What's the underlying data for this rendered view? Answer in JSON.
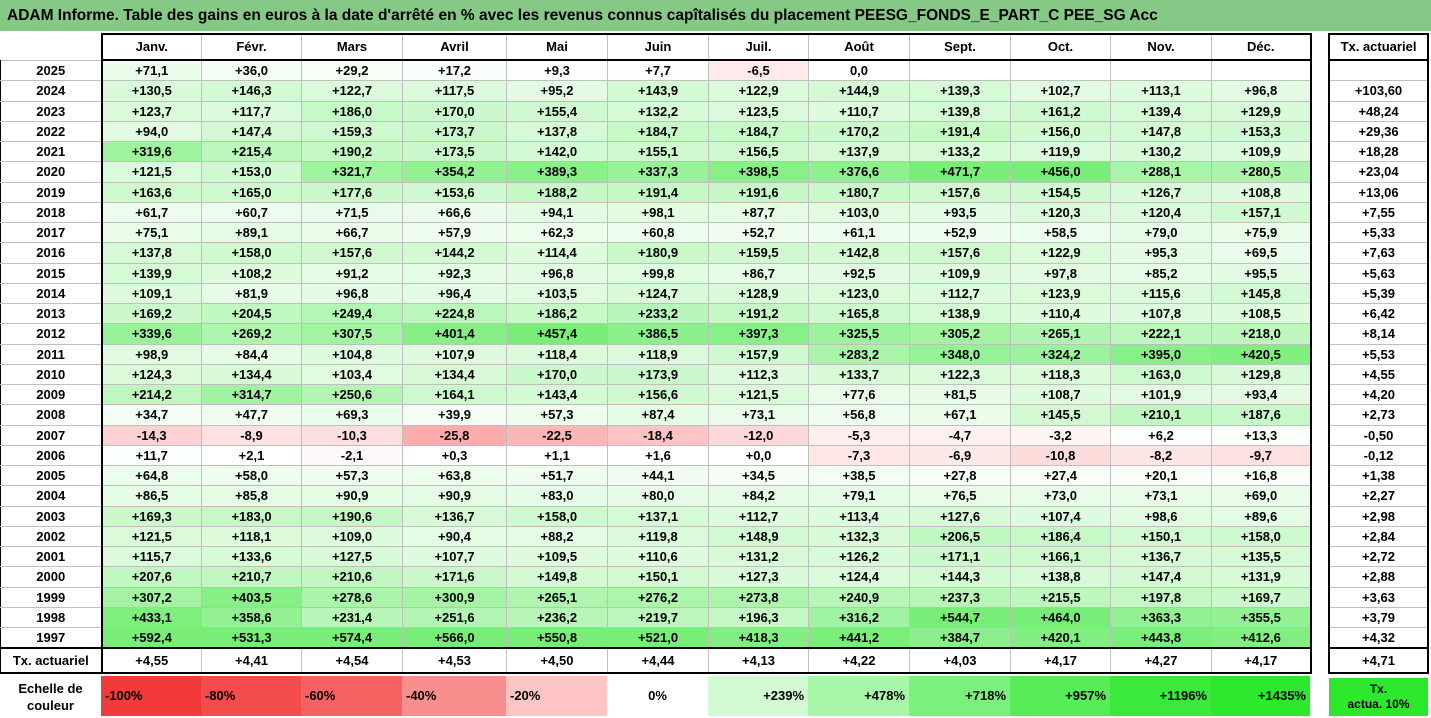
{
  "title": "ADAM Informe. Table des gains en euros à la date d'arrêté en % avec les revenus connus capîtalisés du placement PEESG_FONDS_E_PART_C PEE_SG Acc",
  "months": [
    "Janv.",
    "Févr.",
    "Mars",
    "Avril",
    "Mai",
    "Juin",
    "Juil.",
    "Août",
    "Sept.",
    "Oct.",
    "Nov.",
    "Déc."
  ],
  "side_header": "Tx. actuariel",
  "rows": [
    {
      "year": "2025",
      "values": [
        "+71,1",
        "+36,0",
        "+29,2",
        "+17,2",
        "+9,3",
        "+7,7",
        "-6,5",
        "0,0",
        "",
        "",
        "",
        ""
      ],
      "tx": ""
    },
    {
      "year": "2024",
      "values": [
        "+130,5",
        "+146,3",
        "+122,7",
        "+117,5",
        "+95,2",
        "+143,9",
        "+122,9",
        "+144,9",
        "+139,3",
        "+102,7",
        "+113,1",
        "+96,8"
      ],
      "tx": "+103,60"
    },
    {
      "year": "2023",
      "values": [
        "+123,7",
        "+117,7",
        "+186,0",
        "+170,0",
        "+155,4",
        "+132,2",
        "+123,5",
        "+110,7",
        "+139,8",
        "+161,2",
        "+139,4",
        "+129,9"
      ],
      "tx": "+48,24"
    },
    {
      "year": "2022",
      "values": [
        "+94,0",
        "+147,4",
        "+159,3",
        "+173,7",
        "+137,8",
        "+184,7",
        "+184,7",
        "+170,2",
        "+191,4",
        "+156,0",
        "+147,8",
        "+153,3"
      ],
      "tx": "+29,36"
    },
    {
      "year": "2021",
      "values": [
        "+319,6",
        "+215,4",
        "+190,2",
        "+173,5",
        "+142,0",
        "+155,1",
        "+156,5",
        "+137,9",
        "+133,2",
        "+119,9",
        "+130,2",
        "+109,9"
      ],
      "tx": "+18,28"
    },
    {
      "year": "2020",
      "values": [
        "+121,5",
        "+153,0",
        "+321,7",
        "+354,2",
        "+389,3",
        "+337,3",
        "+398,5",
        "+376,6",
        "+471,7",
        "+456,0",
        "+288,1",
        "+280,5"
      ],
      "tx": "+23,04"
    },
    {
      "year": "2019",
      "values": [
        "+163,6",
        "+165,0",
        "+177,6",
        "+153,6",
        "+188,2",
        "+191,4",
        "+191,6",
        "+180,7",
        "+157,6",
        "+154,5",
        "+126,7",
        "+108,8"
      ],
      "tx": "+13,06"
    },
    {
      "year": "2018",
      "values": [
        "+61,7",
        "+60,7",
        "+71,5",
        "+66,6",
        "+94,1",
        "+98,1",
        "+87,7",
        "+103,0",
        "+93,5",
        "+120,3",
        "+120,4",
        "+157,1"
      ],
      "tx": "+7,55"
    },
    {
      "year": "2017",
      "values": [
        "+75,1",
        "+89,1",
        "+66,7",
        "+57,9",
        "+62,3",
        "+60,8",
        "+52,7",
        "+61,1",
        "+52,9",
        "+58,5",
        "+79,0",
        "+75,9"
      ],
      "tx": "+5,33"
    },
    {
      "year": "2016",
      "values": [
        "+137,8",
        "+158,0",
        "+157,6",
        "+144,2",
        "+114,4",
        "+180,9",
        "+159,5",
        "+142,8",
        "+157,6",
        "+122,9",
        "+95,3",
        "+69,5"
      ],
      "tx": "+7,63"
    },
    {
      "year": "2015",
      "values": [
        "+139,9",
        "+108,2",
        "+91,2",
        "+92,3",
        "+96,8",
        "+99,8",
        "+86,7",
        "+92,5",
        "+109,9",
        "+97,8",
        "+85,2",
        "+95,5"
      ],
      "tx": "+5,63"
    },
    {
      "year": "2014",
      "values": [
        "+109,1",
        "+81,9",
        "+96,8",
        "+96,4",
        "+103,5",
        "+124,7",
        "+128,9",
        "+123,0",
        "+112,7",
        "+123,9",
        "+115,6",
        "+145,8"
      ],
      "tx": "+5,39"
    },
    {
      "year": "2013",
      "values": [
        "+169,2",
        "+204,5",
        "+249,4",
        "+224,8",
        "+186,2",
        "+233,2",
        "+191,2",
        "+165,8",
        "+138,9",
        "+110,4",
        "+107,8",
        "+108,5"
      ],
      "tx": "+6,42"
    },
    {
      "year": "2012",
      "values": [
        "+339,6",
        "+269,2",
        "+307,5",
        "+401,4",
        "+457,4",
        "+386,5",
        "+397,3",
        "+325,5",
        "+305,2",
        "+265,1",
        "+222,1",
        "+218,0"
      ],
      "tx": "+8,14"
    },
    {
      "year": "2011",
      "values": [
        "+98,9",
        "+84,4",
        "+104,8",
        "+107,9",
        "+118,4",
        "+118,9",
        "+157,9",
        "+283,2",
        "+348,0",
        "+324,2",
        "+395,0",
        "+420,5"
      ],
      "tx": "+5,53"
    },
    {
      "year": "2010",
      "values": [
        "+124,3",
        "+134,4",
        "+103,4",
        "+134,4",
        "+170,0",
        "+173,9",
        "+112,3",
        "+133,7",
        "+122,3",
        "+118,3",
        "+163,0",
        "+129,8"
      ],
      "tx": "+4,55"
    },
    {
      "year": "2009",
      "values": [
        "+214,2",
        "+314,7",
        "+250,6",
        "+164,1",
        "+143,4",
        "+156,6",
        "+121,5",
        "+77,6",
        "+81,5",
        "+108,7",
        "+101,9",
        "+93,4"
      ],
      "tx": "+4,20"
    },
    {
      "year": "2008",
      "values": [
        "+34,7",
        "+47,7",
        "+69,3",
        "+39,9",
        "+57,3",
        "+87,4",
        "+73,1",
        "+56,8",
        "+67,1",
        "+145,5",
        "+210,1",
        "+187,6"
      ],
      "tx": "+2,73"
    },
    {
      "year": "2007",
      "values": [
        "-14,3",
        "-8,9",
        "-10,3",
        "-25,8",
        "-22,5",
        "-18,4",
        "-12,0",
        "-5,3",
        "-4,7",
        "-3,2",
        "+6,2",
        "+13,3"
      ],
      "tx": "-0,50"
    },
    {
      "year": "2006",
      "values": [
        "+11,7",
        "+2,1",
        "-2,1",
        "+0,3",
        "+1,1",
        "+1,6",
        "+0,0",
        "-7,3",
        "-6,9",
        "-10,8",
        "-8,2",
        "-9,7"
      ],
      "tx": "-0,12"
    },
    {
      "year": "2005",
      "values": [
        "+64,8",
        "+58,0",
        "+57,3",
        "+63,8",
        "+51,7",
        "+44,1",
        "+34,5",
        "+38,5",
        "+27,8",
        "+27,4",
        "+20,1",
        "+16,8"
      ],
      "tx": "+1,38"
    },
    {
      "year": "2004",
      "values": [
        "+86,5",
        "+85,8",
        "+90,9",
        "+90,9",
        "+83,0",
        "+80,0",
        "+84,2",
        "+79,1",
        "+76,5",
        "+73,0",
        "+73,1",
        "+69,0"
      ],
      "tx": "+2,27"
    },
    {
      "year": "2003",
      "values": [
        "+169,3",
        "+183,0",
        "+190,6",
        "+136,7",
        "+158,0",
        "+137,1",
        "+112,7",
        "+113,4",
        "+127,6",
        "+107,4",
        "+98,6",
        "+89,6"
      ],
      "tx": "+2,98"
    },
    {
      "year": "2002",
      "values": [
        "+121,5",
        "+118,1",
        "+109,0",
        "+90,4",
        "+88,2",
        "+119,8",
        "+148,9",
        "+132,3",
        "+206,5",
        "+186,4",
        "+150,1",
        "+158,0"
      ],
      "tx": "+2,84"
    },
    {
      "year": "2001",
      "values": [
        "+115,7",
        "+133,6",
        "+127,5",
        "+107,7",
        "+109,5",
        "+110,6",
        "+131,2",
        "+126,2",
        "+171,1",
        "+166,1",
        "+136,7",
        "+135,5"
      ],
      "tx": "+2,72"
    },
    {
      "year": "2000",
      "values": [
        "+207,6",
        "+210,7",
        "+210,6",
        "+171,6",
        "+149,8",
        "+150,1",
        "+127,3",
        "+124,4",
        "+144,3",
        "+138,8",
        "+147,4",
        "+131,9"
      ],
      "tx": "+2,88"
    },
    {
      "year": "1999",
      "values": [
        "+307,2",
        "+403,5",
        "+278,6",
        "+300,9",
        "+265,1",
        "+276,2",
        "+273,8",
        "+240,9",
        "+237,3",
        "+215,5",
        "+197,8",
        "+169,7"
      ],
      "tx": "+3,63"
    },
    {
      "year": "1998",
      "values": [
        "+433,1",
        "+358,6",
        "+231,4",
        "+251,6",
        "+236,2",
        "+219,7",
        "+196,3",
        "+316,2",
        "+544,7",
        "+464,0",
        "+363,3",
        "+355,5"
      ],
      "tx": "+3,79"
    },
    {
      "year": "1997",
      "values": [
        "+592,4",
        "+531,3",
        "+574,4",
        "+566,0",
        "+550,8",
        "+521,0",
        "+418,3",
        "+441,2",
        "+384,7",
        "+420,1",
        "+443,8",
        "+412,6"
      ],
      "tx": "+4,32"
    }
  ],
  "tx_row": {
    "label": "Tx. actuariel",
    "values": [
      "+4,55",
      "+4,41",
      "+4,54",
      "+4,53",
      "+4,50",
      "+4,44",
      "+4,13",
      "+4,22",
      "+4,03",
      "+4,17",
      "+4,27",
      "+4,17"
    ],
    "total": "+4,71"
  },
  "legend": {
    "label_line1": "Echelle de",
    "label_line2": "couleur",
    "swatches": [
      {
        "text": "-100%",
        "color": "#f23a3a",
        "align": "left"
      },
      {
        "text": "-80%",
        "color": "#f44c4c",
        "align": "left"
      },
      {
        "text": "-60%",
        "color": "#f66262",
        "align": "left"
      },
      {
        "text": "-40%",
        "color": "#f98e8e",
        "align": "left"
      },
      {
        "text": "-20%",
        "color": "#fcc4c4",
        "align": "left"
      },
      {
        "text": "0%",
        "color": "#ffffff",
        "align": "center"
      },
      {
        "text": "+239%",
        "color": "#d2fbd2",
        "align": "right"
      },
      {
        "text": "+478%",
        "color": "#a8f6a8",
        "align": "right"
      },
      {
        "text": "+718%",
        "color": "#7cf07c",
        "align": "right"
      },
      {
        "text": "+957%",
        "color": "#58ec58",
        "align": "right"
      },
      {
        "text": "+1196%",
        "color": "#3be93b",
        "align": "right"
      },
      {
        "text": "+1435%",
        "color": "#2ee82e",
        "align": "right"
      }
    ],
    "side_line1": "Tx.",
    "side_line2": "actua. 10%"
  }
}
